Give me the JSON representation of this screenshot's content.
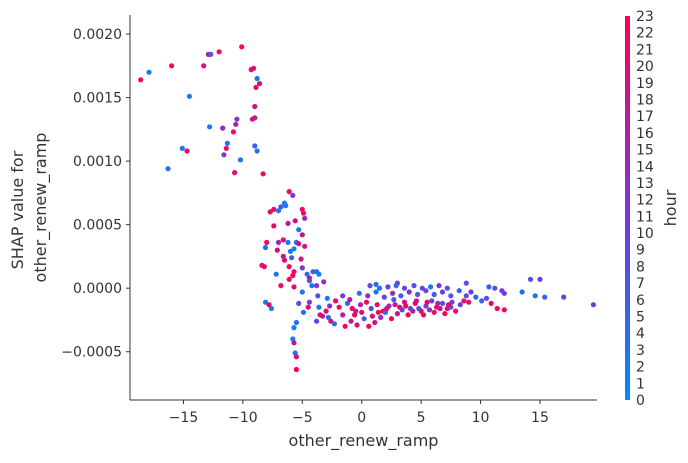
{
  "chart_data": {
    "type": "scatter",
    "xlabel": "other_renew_ramp",
    "ylabel_lines": [
      "SHAP value for",
      "other_renew_ramp"
    ],
    "xlim": [
      -19.5,
      19.8
    ],
    "ylim": [
      -0.00088,
      0.00215
    ],
    "x_ticks": [
      -15,
      -10,
      -5,
      0,
      5,
      10,
      15
    ],
    "x_tick_labels": [
      "−15",
      "−10",
      "−5",
      "0",
      "5",
      "10",
      "15"
    ],
    "y_ticks": [
      -0.0005,
      0.0,
      0.0005,
      0.001,
      0.0015,
      0.002
    ],
    "y_tick_labels": [
      "−0.0005",
      "0.0000",
      "0.0005",
      "0.0010",
      "0.0015",
      "0.0020"
    ],
    "colorbar": {
      "label": "hour",
      "min": 0,
      "max": 23,
      "tick_labels": [
        "0",
        "1",
        "2",
        "3",
        "4",
        "5",
        "6",
        "7",
        "8",
        "9",
        "10",
        "11",
        "12",
        "13",
        "14",
        "15",
        "16",
        "17",
        "18",
        "19",
        "20",
        "21",
        "22",
        "23"
      ],
      "colors": [
        "#008afb",
        "#7a35d9",
        "#ff0052"
      ]
    },
    "series": [
      {
        "points": [
          [
            -18.6,
            0.00164,
            22
          ],
          [
            -17.9,
            0.0017,
            2
          ],
          [
            -16.0,
            0.00175,
            22
          ],
          [
            -14.5,
            0.00151,
            2
          ],
          [
            -13.3,
            0.00175,
            20
          ],
          [
            -12.9,
            0.00184,
            18
          ],
          [
            -12.7,
            0.00184,
            6
          ],
          [
            -12.0,
            0.00186,
            22
          ],
          [
            -10.1,
            0.0019,
            22
          ],
          [
            -9.3,
            0.00172,
            19
          ],
          [
            -9.1,
            0.00173,
            20
          ],
          [
            -8.8,
            0.00165,
            3
          ],
          [
            -8.9,
            0.00158,
            21
          ],
          [
            -8.6,
            0.00161,
            20
          ],
          [
            -9.0,
            0.00143,
            18
          ],
          [
            -9.2,
            0.00133,
            21
          ],
          [
            -9.0,
            0.00134,
            17
          ],
          [
            -10.5,
            0.00133,
            12
          ],
          [
            -10.6,
            0.00129,
            16
          ],
          [
            -10.8,
            0.00123,
            21
          ],
          [
            -11.7,
            0.00126,
            14
          ],
          [
            -12.8,
            0.00127,
            3
          ],
          [
            -11.3,
            0.00114,
            3
          ],
          [
            -11.4,
            0.0011,
            20
          ],
          [
            -11.6,
            0.00105,
            12
          ],
          [
            -10.2,
            0.00101,
            2
          ],
          [
            -9.0,
            0.00112,
            6
          ],
          [
            -8.8,
            0.00108,
            2
          ],
          [
            -15.1,
            0.0011,
            3
          ],
          [
            -14.7,
            0.00108,
            22
          ],
          [
            -16.3,
            0.00094,
            3
          ],
          [
            -10.7,
            0.00091,
            21
          ],
          [
            -8.3,
            0.0009,
            21
          ],
          [
            -6.1,
            0.00076,
            21
          ],
          [
            -5.8,
            0.00073,
            10
          ],
          [
            -7.4,
            0.00062,
            22
          ],
          [
            -6.8,
            0.00064,
            7
          ],
          [
            -7.0,
            0.00061,
            2
          ],
          [
            -7.7,
            0.0006,
            20
          ],
          [
            -5.0,
            0.00062,
            21
          ],
          [
            -6.5,
            0.00067,
            1
          ],
          [
            -6.4,
            0.00065,
            3
          ],
          [
            -4.9,
            0.00059,
            22
          ],
          [
            -4.8,
            0.00055,
            14
          ],
          [
            -5.6,
            0.00053,
            20
          ],
          [
            -6.2,
            0.00051,
            17
          ],
          [
            -7.4,
            0.00049,
            21
          ],
          [
            -5.3,
            0.00046,
            2
          ],
          [
            -5.0,
            0.00042,
            18
          ],
          [
            -6.6,
            0.00038,
            21
          ],
          [
            -7.0,
            0.00036,
            15
          ],
          [
            -8.0,
            0.00036,
            22
          ],
          [
            -5.5,
            0.00036,
            6
          ],
          [
            -6.2,
            0.00036,
            2
          ],
          [
            -5.3,
            0.00035,
            20
          ],
          [
            -4.8,
            0.00033,
            18
          ],
          [
            -5.7,
            0.00031,
            1
          ],
          [
            -6.0,
            0.00029,
            3
          ],
          [
            -8.1,
            0.00032,
            3
          ],
          [
            -7.1,
            0.0003,
            20
          ],
          [
            -6.6,
            0.00025,
            17
          ],
          [
            -5.9,
            0.00024,
            6
          ],
          [
            -6.5,
            0.00022,
            21
          ],
          [
            -5.1,
            0.00023,
            19
          ],
          [
            -8.4,
            0.00018,
            20
          ],
          [
            -8.2,
            0.00017,
            21
          ],
          [
            -6.1,
            0.00017,
            21
          ],
          [
            -5.0,
            0.00016,
            12
          ],
          [
            -7.2,
            0.00011,
            2
          ],
          [
            -5.7,
            0.00013,
            20
          ],
          [
            -5.8,
            0.0001,
            22
          ],
          [
            -4.6,
            0.00011,
            3
          ],
          [
            -3.8,
            0.00013,
            3
          ],
          [
            -4.1,
            0.00013,
            6
          ],
          [
            -3.6,
            0.00011,
            1
          ],
          [
            -4.4,
            8e-05,
            20
          ],
          [
            -6.1,
            7e-05,
            22
          ],
          [
            -4.4,
            6e-05,
            8
          ],
          [
            -3.2,
            5e-05,
            14
          ],
          [
            -6.8,
            2e-05,
            21
          ],
          [
            -5.7,
            1e-05,
            20
          ],
          [
            -4.2,
            2e-05,
            2
          ],
          [
            -3.8,
            2e-05,
            11
          ],
          [
            -5.0,
            -3e-05,
            3
          ],
          [
            -8.1,
            -0.00011,
            2
          ],
          [
            -7.8,
            -0.00013,
            22
          ],
          [
            -7.6,
            -0.00016,
            2
          ],
          [
            -5.3,
            -0.00012,
            8
          ],
          [
            -4.4,
            -0.00011,
            11
          ],
          [
            -3.7,
            -6e-05,
            8
          ],
          [
            -2.9,
            -8e-05,
            3
          ],
          [
            -4.5,
            -0.00015,
            20
          ],
          [
            -3.6,
            -0.00015,
            2
          ],
          [
            -4.9,
            -0.00019,
            4
          ],
          [
            -3.3,
            -0.00022,
            14
          ],
          [
            -2.8,
            -0.00023,
            3
          ],
          [
            -3.8,
            -0.00026,
            9
          ],
          [
            -2.6,
            -0.00026,
            20
          ],
          [
            -5.5,
            -0.00027,
            3
          ],
          [
            -5.7,
            -0.00031,
            1
          ],
          [
            -5.8,
            -0.0004,
            1
          ],
          [
            -5.7,
            -0.00043,
            19
          ],
          [
            -5.6,
            -0.00051,
            3
          ],
          [
            -5.5,
            -0.00054,
            20
          ],
          [
            -5.5,
            -0.00064,
            22
          ],
          [
            -1.9,
            -0.00015,
            22
          ],
          [
            -1.2,
            -0.00012,
            4
          ],
          [
            -0.8,
            -0.00016,
            22
          ],
          [
            -1.6,
            -0.00021,
            17
          ],
          [
            -0.5,
            -0.00018,
            14
          ],
          [
            -0.1,
            -0.00013,
            16
          ],
          [
            0.4,
            -0.00011,
            22
          ],
          [
            0.8,
            -0.00016,
            8
          ],
          [
            1.3,
            -0.00013,
            20
          ],
          [
            1.8,
            -0.00018,
            22
          ],
          [
            2.3,
            -0.00014,
            12
          ],
          [
            2.7,
            -9e-05,
            7
          ],
          [
            3.2,
            -0.00015,
            22
          ],
          [
            3.6,
            -0.00011,
            19
          ],
          [
            4.1,
            -0.00016,
            8
          ],
          [
            4.5,
            -0.00012,
            21
          ],
          [
            5.0,
            -0.00018,
            22
          ],
          [
            5.4,
            -0.00014,
            11
          ],
          [
            5.9,
            -0.0001,
            9
          ],
          [
            6.3,
            -0.00015,
            21
          ],
          [
            6.8,
            -0.00012,
            7
          ],
          [
            7.2,
            -0.00016,
            20
          ],
          [
            7.6,
            -0.00011,
            11
          ],
          [
            -2.3,
            -0.00028,
            3
          ],
          [
            -1.4,
            -0.0003,
            22
          ],
          [
            -0.9,
            -0.00026,
            17
          ],
          [
            -0.4,
            -0.00029,
            20
          ],
          [
            0.2,
            -0.00024,
            6
          ],
          [
            0.6,
            -0.0003,
            22
          ],
          [
            1.1,
            -0.00027,
            18
          ],
          [
            1.6,
            -0.00023,
            14
          ],
          [
            2.0,
            -0.00019,
            3
          ],
          [
            2.5,
            -0.00024,
            22
          ],
          [
            3.0,
            -0.0002,
            17
          ],
          [
            3.4,
            -0.00017,
            10
          ],
          [
            3.9,
            -0.00021,
            22
          ],
          [
            4.3,
            -0.00018,
            16
          ],
          [
            4.8,
            -0.00016,
            8
          ],
          [
            5.2,
            -0.00021,
            21
          ],
          [
            5.7,
            -0.00017,
            13
          ],
          [
            6.1,
            -0.00019,
            22
          ],
          [
            6.6,
            -0.00016,
            19
          ],
          [
            7.0,
            -0.0002,
            22
          ],
          [
            7.5,
            -0.00015,
            8
          ],
          [
            7.9,
            -0.00018,
            21
          ],
          [
            8.3,
            -0.00013,
            10
          ],
          [
            -0.2,
            -4e-05,
            3
          ],
          [
            0.5,
            -6e-05,
            14
          ],
          [
            1.2,
            -3e-05,
            2
          ],
          [
            1.9,
            -7e-05,
            9
          ],
          [
            2.6,
            -4e-05,
            13
          ],
          [
            3.3,
            -6e-05,
            6
          ],
          [
            4.0,
            -3e-05,
            11
          ],
          [
            4.7,
            -5e-05,
            8
          ],
          [
            5.4,
            -2e-05,
            9
          ],
          [
            6.1,
            -5e-05,
            7
          ],
          [
            6.8,
            -3e-05,
            10
          ],
          [
            7.5,
            -6e-05,
            8
          ],
          [
            8.2,
            -2e-05,
            6
          ],
          [
            0.7,
            2e-05,
            8
          ],
          [
            1.5,
            0.0,
            4
          ],
          [
            2.2,
            1e-05,
            10
          ],
          [
            2.9,
            2e-05,
            3
          ],
          [
            3.6,
            0.0,
            9
          ],
          [
            4.4,
            2e-05,
            7
          ],
          [
            5.1,
            0.0,
            9
          ],
          [
            5.8,
            1e-05,
            3
          ],
          [
            6.5,
            2e-05,
            10
          ],
          [
            7.2,
            0.0,
            8
          ],
          [
            1.2,
            3e-05,
            3
          ],
          [
            3.0,
            4e-05,
            9
          ],
          [
            -1.0,
            -9e-05,
            18
          ],
          [
            -1.6,
            -6e-05,
            11
          ],
          [
            -2.2,
            -0.0001,
            22
          ],
          [
            -2.7,
            -0.00014,
            13
          ],
          [
            -3.0,
            -0.00018,
            21
          ],
          [
            -3.5,
            -0.00021,
            20
          ],
          [
            -0.6,
            -0.00021,
            22
          ],
          [
            0.0,
            -0.00019,
            21
          ],
          [
            0.9,
            -0.00022,
            20
          ],
          [
            1.4,
            -0.00019,
            22
          ],
          [
            2.1,
            -0.00016,
            21
          ],
          [
            2.8,
            -0.00013,
            18
          ],
          [
            3.7,
            -0.00014,
            22
          ],
          [
            4.6,
            -0.0001,
            19
          ],
          [
            5.5,
            -0.00011,
            22
          ],
          [
            6.4,
            -0.00012,
            17
          ],
          [
            7.3,
            -0.00013,
            21
          ],
          [
            8.8,
            -6e-05,
            8
          ],
          [
            9.2,
            -3e-05,
            11
          ],
          [
            9.6,
            -7e-05,
            4
          ],
          [
            10.1,
            -0.0001,
            6
          ],
          [
            10.5,
            -8e-05,
            9
          ],
          [
            10.9,
            -0.00012,
            21
          ],
          [
            11.4,
            -0.00016,
            22
          ],
          [
            12.0,
            -0.00017,
            22
          ],
          [
            11.8,
            -2e-05,
            10
          ],
          [
            11.2,
            0.0,
            8
          ],
          [
            10.7,
            1e-05,
            6
          ],
          [
            12.0,
            -4e-05,
            11
          ],
          [
            9.0,
            -0.00011,
            21
          ],
          [
            8.6,
            -0.0001,
            20
          ],
          [
            13.5,
            -3e-05,
            3
          ],
          [
            14.2,
            7e-05,
            7
          ],
          [
            15.0,
            7e-05,
            9
          ],
          [
            14.6,
            -6e-05,
            4
          ],
          [
            15.4,
            -7e-05,
            6
          ],
          [
            17.0,
            -7e-05,
            9
          ],
          [
            19.5,
            -0.00013,
            11
          ],
          [
            8.8,
            4e-05,
            8
          ]
        ]
      }
    ]
  }
}
